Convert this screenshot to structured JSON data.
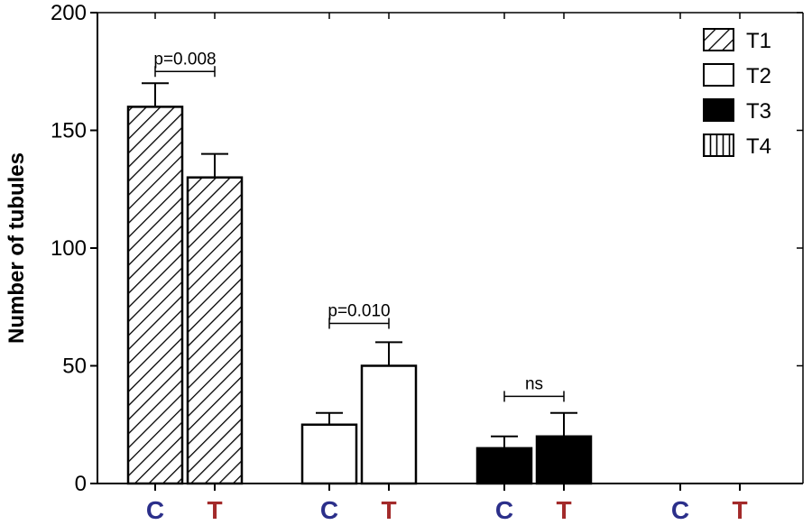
{
  "chart_data": {
    "type": "bar",
    "title": "",
    "xlabel": "",
    "ylabel": "Number of tubules",
    "ylim": [
      0,
      200
    ],
    "yticks": [
      0,
      50,
      100,
      150,
      200
    ],
    "groups": [
      {
        "legend": "T1",
        "pattern": "diagonal-hatch",
        "bars": [
          {
            "label": "C",
            "value": 160,
            "error": 10
          },
          {
            "label": "T",
            "value": 130,
            "error": 10
          }
        ]
      },
      {
        "legend": "T2",
        "pattern": "empty",
        "bars": [
          {
            "label": "C",
            "value": 25,
            "error": 5
          },
          {
            "label": "T",
            "value": 50,
            "error": 10
          }
        ]
      },
      {
        "legend": "T3",
        "pattern": "solid-black",
        "bars": [
          {
            "label": "C",
            "value": 15,
            "error": 5
          },
          {
            "label": "T",
            "value": 20,
            "error": 10
          }
        ]
      },
      {
        "legend": "T4",
        "pattern": "vertical-hatch",
        "bars": [
          {
            "label": "C",
            "value": 0,
            "error": 0
          },
          {
            "label": "T",
            "value": 0,
            "error": 0
          }
        ]
      }
    ],
    "annotations": [
      {
        "group": 0,
        "text": "p=0.008",
        "y": 175
      },
      {
        "group": 1,
        "text": "p=0.010",
        "y": 68
      },
      {
        "group": 2,
        "text": "ns",
        "y": 37
      }
    ],
    "category_colors": {
      "C": "#2b2f8a",
      "T": "#a32a2a"
    },
    "legend_position": "top-right"
  }
}
